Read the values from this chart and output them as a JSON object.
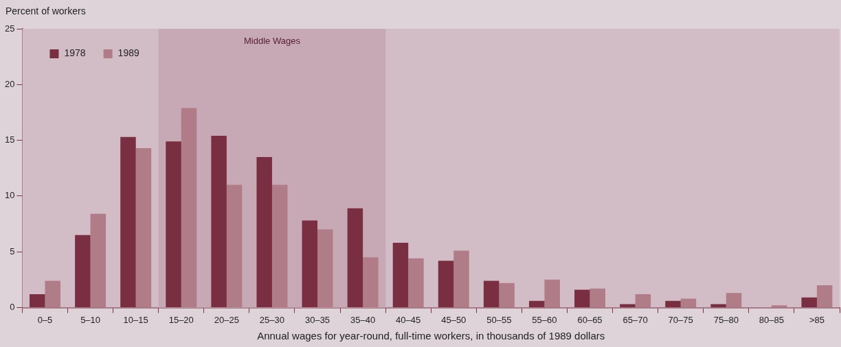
{
  "chart_data": {
    "type": "bar",
    "ylabel": "Percent of workers",
    "xlabel": "Annual wages for year-round, full-time workers, in thousands of 1989 dollars",
    "categories": [
      "0–5",
      "5–10",
      "10–15",
      "15–20",
      "20–25",
      "25–30",
      "30–35",
      "35–40",
      "40–45",
      "45–50",
      "50–55",
      "55–60",
      "60–65",
      "65–70",
      "70–75",
      "75–80",
      "80–85",
      ">85"
    ],
    "series": [
      {
        "name": "1978",
        "color": "#7a2e42",
        "values": [
          1.2,
          6.5,
          15.3,
          14.9,
          15.4,
          13.5,
          7.8,
          8.9,
          5.8,
          4.2,
          2.4,
          0.6,
          1.6,
          0.3,
          0.6,
          0.3,
          0,
          0.9
        ]
      },
      {
        "name": "1989",
        "color": "#b07c88",
        "values": [
          2.4,
          8.4,
          14.3,
          17.9,
          11.0,
          11.0,
          7.0,
          4.5,
          4.4,
          5.1,
          2.2,
          2.5,
          1.7,
          1.2,
          0.8,
          1.3,
          0.2,
          2.0
        ]
      }
    ],
    "ylim": [
      0,
      25
    ],
    "yticks": [
      0,
      5,
      10,
      15,
      20,
      25
    ],
    "grid": false,
    "legend": "top left",
    "bands": [
      {
        "axis": "x",
        "from": "15–20",
        "to": "35–40",
        "label": "Middle Wages",
        "color": "#c7a9b5"
      }
    ]
  }
}
